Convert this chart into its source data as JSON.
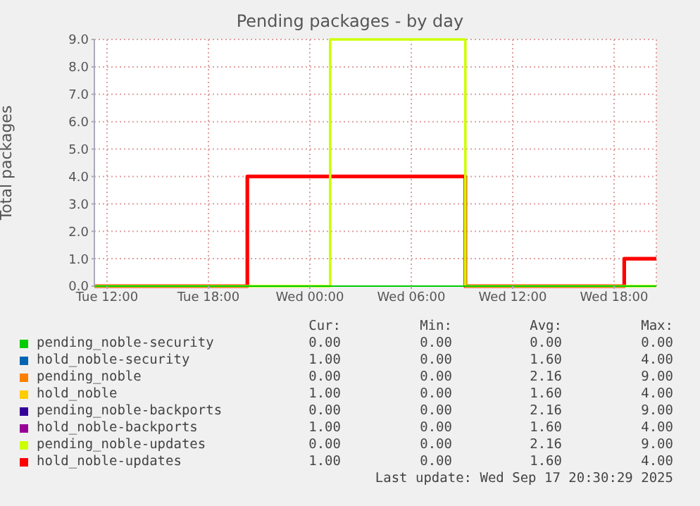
{
  "chart_data": {
    "type": "step",
    "title": "Pending packages - by day",
    "ylabel": "Total packages",
    "x": [
      "2025-09-16T11:15",
      "2025-09-16T20:18",
      "2025-09-17T01:12",
      "2025-09-17T09:12",
      "2025-09-17T18:36",
      "2025-09-17T20:30"
    ],
    "xlim": [
      "2025-09-16T11:15",
      "2025-09-17T20:30"
    ],
    "xticks": [
      {
        "value": "2025-09-16T12:00",
        "label": "Tue 12:00"
      },
      {
        "value": "2025-09-16T18:00",
        "label": "Tue 18:00"
      },
      {
        "value": "2025-09-17T00:00",
        "label": "Wed 00:00"
      },
      {
        "value": "2025-09-17T06:00",
        "label": "Wed 06:00"
      },
      {
        "value": "2025-09-17T12:00",
        "label": "Wed 12:00"
      },
      {
        "value": "2025-09-17T18:00",
        "label": "Wed 18:00"
      }
    ],
    "ylim": [
      0,
      9
    ],
    "yticks": [
      {
        "value": 0,
        "label": "0.0"
      },
      {
        "value": 1,
        "label": "1.0"
      },
      {
        "value": 2,
        "label": "2.0"
      },
      {
        "value": 3,
        "label": "3.0"
      },
      {
        "value": 4,
        "label": "4.0"
      },
      {
        "value": 5,
        "label": "5.0"
      },
      {
        "value": 6,
        "label": "6.0"
      },
      {
        "value": 7,
        "label": "7.0"
      },
      {
        "value": 8,
        "label": "8.0"
      },
      {
        "value": 9,
        "label": "9.0"
      }
    ],
    "grid": true,
    "legend": "bottom",
    "series": [
      {
        "name": "pending_noble-security",
        "color": "#00cc00",
        "values": [
          0,
          0,
          0,
          0,
          0,
          0
        ]
      },
      {
        "name": "hold_noble-security",
        "color": "#0066b3",
        "values": [
          null,
          null,
          null,
          null,
          null,
          null
        ]
      },
      {
        "name": "pending_noble",
        "color": "#ff8000",
        "values": [
          null,
          null,
          null,
          null,
          null,
          null
        ]
      },
      {
        "name": "hold_noble",
        "color": "#ffcc00",
        "values": [
          null,
          null,
          null,
          null,
          null,
          null
        ]
      },
      {
        "name": "pending_noble-backports",
        "color": "#330099",
        "values": [
          null,
          null,
          null,
          null,
          null,
          null
        ]
      },
      {
        "name": "hold_noble-backports",
        "color": "#990099",
        "values": [
          null,
          null,
          null,
          null,
          null,
          null
        ]
      },
      {
        "name": "pending_noble-updates",
        "color": "#ccff00",
        "values": [
          0,
          0,
          9,
          0,
          0,
          0
        ]
      },
      {
        "name": "hold_noble-updates",
        "color": "#ff0000",
        "values": [
          0,
          4,
          4,
          0,
          1,
          1
        ]
      }
    ],
    "annotations": [
      "Cur:",
      "Min:",
      "Avg:",
      "Max:",
      "0.00",
      "0.00",
      "0.00",
      "0.00",
      "1.00",
      "0.00",
      "1.60",
      "4.00",
      "0.00",
      "0.00",
      "2.16",
      "9.00",
      "1.00",
      "0.00",
      "1.60",
      "4.00",
      "0.00",
      "0.00",
      "2.16",
      "9.00",
      "1.00",
      "0.00",
      "1.60",
      "4.00",
      "0.00",
      "0.00",
      "2.16",
      "9.00",
      "1.00",
      "0.00",
      "1.60",
      "4.00",
      "Last update: Wed Sep 17 20:30:29 2025"
    ]
  }
}
